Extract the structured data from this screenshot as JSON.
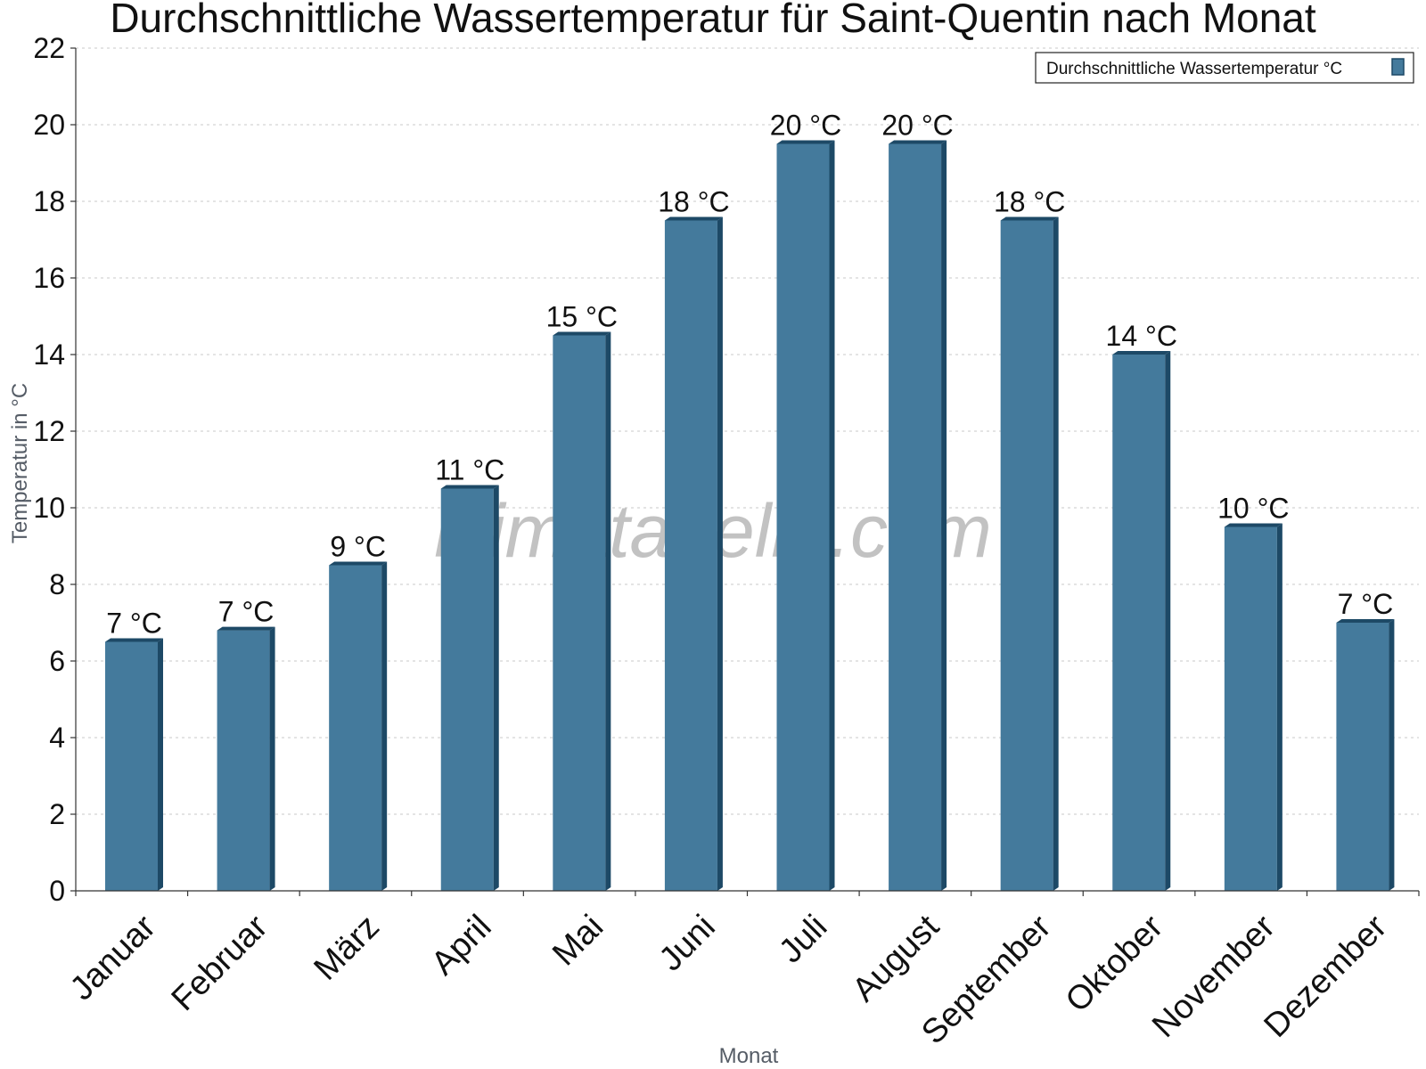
{
  "chart_data": {
    "type": "bar",
    "title": "Durchschnittliche Wassertemperatur für Saint-Quentin nach Monat",
    "xlabel": "Monat",
    "ylabel": "Temperatur in °C",
    "ylim": [
      0,
      22
    ],
    "yticks": [
      0,
      2,
      4,
      6,
      8,
      10,
      12,
      14,
      16,
      18,
      20,
      22
    ],
    "grid": true,
    "legend_position": "top-right",
    "categories": [
      "Januar",
      "Februar",
      "März",
      "April",
      "Mai",
      "Juni",
      "Juli",
      "August",
      "September",
      "Oktober",
      "November",
      "Dezember"
    ],
    "series": [
      {
        "name": "Durchschnittliche Wassertemperatur °C",
        "color": "#447a9c",
        "values": [
          6.5,
          6.8,
          8.5,
          10.5,
          14.5,
          17.5,
          19.5,
          19.5,
          17.5,
          14.0,
          9.5,
          7.0
        ],
        "labels": [
          "7 °C",
          "7 °C",
          "9 °C",
          "11 °C",
          "15 °C",
          "18 °C",
          "20 °C",
          "20 °C",
          "18 °C",
          "14 °C",
          "10 °C",
          "7 °C"
        ]
      }
    ],
    "watermark": "klimatabelle.com"
  }
}
